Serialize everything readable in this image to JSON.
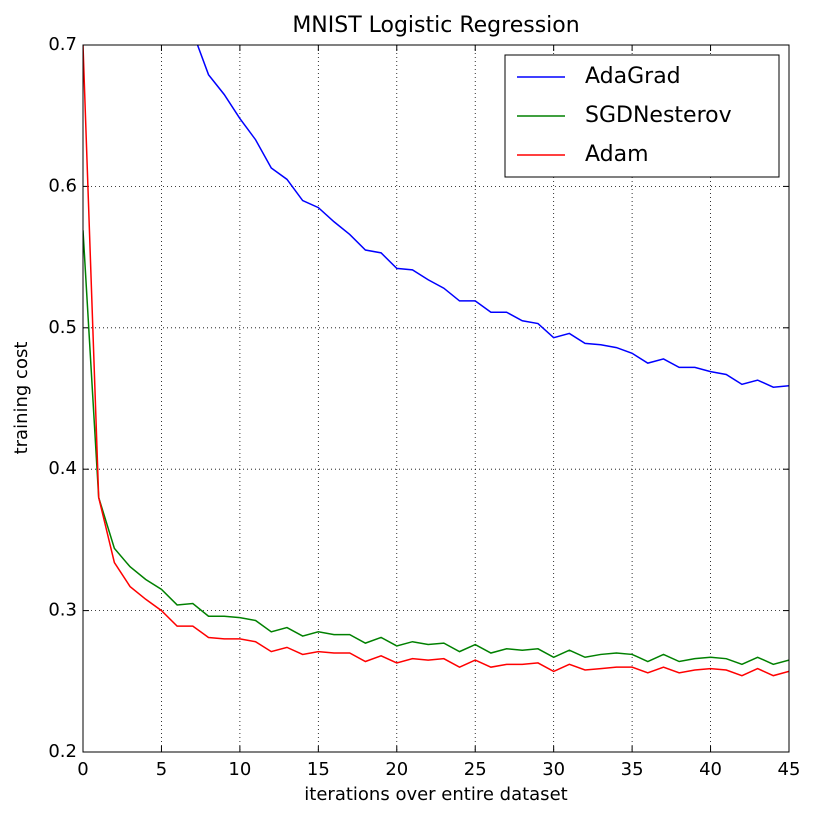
{
  "chart_data": {
    "type": "line",
    "title": "MNIST Logistic Regression",
    "xlabel": "iterations over entire dataset",
    "ylabel": "training cost",
    "x": [
      0,
      1,
      2,
      3,
      4,
      5,
      6,
      7,
      8,
      9,
      10,
      11,
      12,
      13,
      14,
      15,
      16,
      17,
      18,
      19,
      20,
      21,
      22,
      23,
      24,
      25,
      26,
      27,
      28,
      29,
      30,
      31,
      32,
      33,
      34,
      35,
      36,
      37,
      38,
      39,
      40,
      41,
      42,
      43,
      44,
      45
    ],
    "series": [
      {
        "name": "AdaGrad",
        "color": "#0000ff",
        "values": [
          null,
          null,
          null,
          null,
          null,
          null,
          null,
          0.709,
          0.679,
          0.665,
          0.648,
          0.633,
          0.613,
          0.605,
          0.59,
          0.585,
          0.575,
          0.566,
          0.555,
          0.553,
          0.542,
          0.541,
          0.534,
          0.528,
          0.519,
          0.519,
          0.511,
          0.511,
          0.505,
          0.503,
          0.493,
          0.496,
          0.489,
          0.488,
          0.486,
          0.482,
          0.475,
          0.478,
          0.472,
          0.472,
          0.469,
          0.467,
          0.46,
          0.463,
          0.458,
          0.459
        ]
      },
      {
        "name": "SGDNesterov",
        "color": "#008000",
        "values": [
          0.569,
          0.38,
          0.344,
          0.331,
          0.322,
          0.315,
          0.304,
          0.305,
          0.296,
          0.296,
          0.295,
          0.293,
          0.285,
          0.288,
          0.282,
          0.285,
          0.283,
          0.283,
          0.277,
          0.281,
          0.275,
          0.278,
          0.276,
          0.277,
          0.271,
          0.276,
          0.27,
          0.273,
          0.272,
          0.273,
          0.267,
          0.272,
          0.267,
          0.269,
          0.27,
          0.269,
          0.264,
          0.269,
          0.264,
          0.266,
          0.267,
          0.266,
          0.262,
          0.267,
          0.262,
          0.265
        ]
      },
      {
        "name": "Adam",
        "color": "#ff0000",
        "values": [
          0.7,
          0.38,
          0.334,
          0.317,
          0.308,
          0.3,
          0.289,
          0.289,
          0.281,
          0.28,
          0.28,
          0.278,
          0.271,
          0.274,
          0.269,
          0.271,
          0.27,
          0.27,
          0.264,
          0.268,
          0.263,
          0.266,
          0.265,
          0.266,
          0.26,
          0.265,
          0.26,
          0.262,
          0.262,
          0.263,
          0.257,
          0.262,
          0.258,
          0.259,
          0.26,
          0.26,
          0.256,
          0.26,
          0.256,
          0.258,
          0.259,
          0.258,
          0.254,
          0.259,
          0.254,
          0.257
        ]
      }
    ],
    "xlim": [
      0,
      45
    ],
    "xticks": [
      0,
      5,
      10,
      15,
      20,
      25,
      30,
      35,
      40,
      45
    ],
    "ylim": [
      0.2,
      0.7
    ],
    "yticks": [
      0.2,
      0.3,
      0.4,
      0.5,
      0.6,
      0.7
    ],
    "grid": true,
    "legend": "upper right"
  }
}
